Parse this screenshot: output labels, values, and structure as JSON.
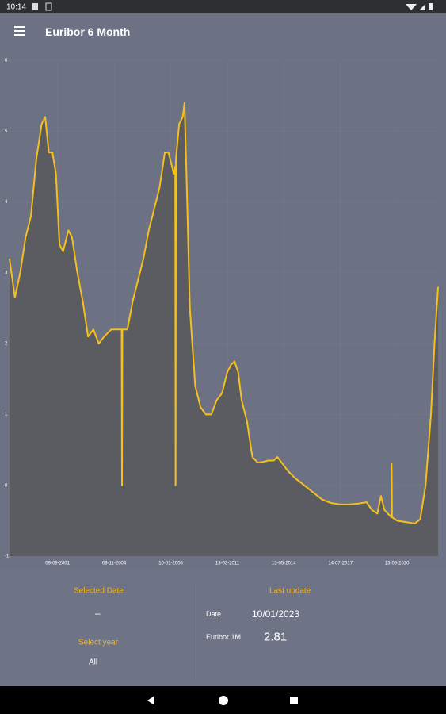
{
  "status_bar": {
    "time": "10:14"
  },
  "app_bar": {
    "title": "Euribor 6 Month"
  },
  "chart_data": {
    "type": "area",
    "color": "#f5c01c",
    "fill": "#5b5c62",
    "grid": true,
    "xlim": [
      1999,
      2023
    ],
    "ylim": [
      -1,
      6
    ],
    "yticks": [
      -1,
      0,
      1,
      2,
      3,
      4,
      5,
      6
    ],
    "xticks": [
      {
        "value": 2001.69,
        "label": "09-09-2001"
      },
      {
        "value": 2004.86,
        "label": "09-11-2004"
      },
      {
        "value": 2008.03,
        "label": "10-01-2008"
      },
      {
        "value": 2011.2,
        "label": "13-03-2011"
      },
      {
        "value": 2014.36,
        "label": "13-05-2014"
      },
      {
        "value": 2017.53,
        "label": "14-07-2017"
      },
      {
        "value": 2020.7,
        "label": "13-09-2020"
      }
    ],
    "x": [
      1999.0,
      1999.3,
      1999.6,
      1999.9,
      2000.2,
      2000.5,
      2000.8,
      2001.0,
      2001.2,
      2001.4,
      2001.6,
      2001.8,
      2002.0,
      2002.3,
      2002.5,
      2002.8,
      2003.1,
      2003.4,
      2003.7,
      2004.0,
      2004.3,
      2004.7,
      2005.0,
      2005.28,
      2005.3,
      2005.32,
      2005.6,
      2005.9,
      2006.2,
      2006.5,
      2006.8,
      2007.1,
      2007.4,
      2007.7,
      2007.9,
      2008.2,
      2008.28,
      2008.3,
      2008.32,
      2008.5,
      2008.7,
      2008.8,
      2008.95,
      2009.1,
      2009.4,
      2009.7,
      2010.0,
      2010.3,
      2010.6,
      2010.9,
      2011.2,
      2011.4,
      2011.6,
      2011.8,
      2012.0,
      2012.3,
      2012.6,
      2012.9,
      2013.2,
      2013.5,
      2013.8,
      2014.0,
      2014.3,
      2014.6,
      2015.0,
      2015.5,
      2016.0,
      2016.5,
      2017.0,
      2017.5,
      2018.0,
      2018.5,
      2019.0,
      2019.3,
      2019.6,
      2019.8,
      2020.0,
      2020.38,
      2020.4,
      2020.42,
      2020.7,
      2021.2,
      2021.7,
      2022.0,
      2022.3,
      2022.6,
      2022.8,
      2023.0
    ],
    "values": [
      3.2,
      2.65,
      3.0,
      3.5,
      3.8,
      4.6,
      5.1,
      5.2,
      4.7,
      4.7,
      4.4,
      3.4,
      3.3,
      3.6,
      3.5,
      3.0,
      2.6,
      2.1,
      2.2,
      2.0,
      2.1,
      2.2,
      2.2,
      2.2,
      0.0,
      2.2,
      2.2,
      2.6,
      2.9,
      3.2,
      3.6,
      3.9,
      4.2,
      4.7,
      4.7,
      4.4,
      4.5,
      0.0,
      4.6,
      5.1,
      5.2,
      5.4,
      4.0,
      2.5,
      1.4,
      1.1,
      1.0,
      1.0,
      1.2,
      1.3,
      1.6,
      1.7,
      1.75,
      1.6,
      1.2,
      0.9,
      0.4,
      0.32,
      0.33,
      0.35,
      0.35,
      0.4,
      0.3,
      0.2,
      0.1,
      0.0,
      -0.1,
      -0.2,
      -0.25,
      -0.27,
      -0.27,
      -0.26,
      -0.24,
      -0.35,
      -0.4,
      -0.15,
      -0.35,
      -0.45,
      0.3,
      -0.45,
      -0.5,
      -0.52,
      -0.54,
      -0.48,
      0.0,
      1.0,
      2.0,
      2.8
    ]
  },
  "panel": {
    "selected_label": "Selected Date",
    "selected_value": "–",
    "year_label": "Select year",
    "year_value": "All",
    "update_label": "Last update",
    "date_label": "Date",
    "date_value": "10/01/2023",
    "rate_label": "Euribor 1M",
    "rate_value": "2.81"
  }
}
